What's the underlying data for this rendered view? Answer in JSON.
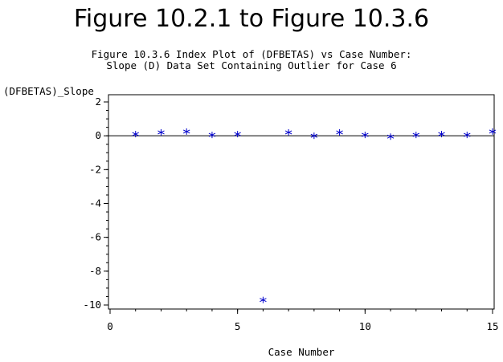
{
  "page": {
    "title": "Figure 10.2.1 to Figure 10.3.6"
  },
  "chart_data": {
    "type": "scatter",
    "title": "Figure 10.3.6 Index Plot of (DFBETAS) vs Case Number:",
    "subtitle": "Slope (D) Data Set Containing Outlier for Case 6",
    "xlabel": "Case Number",
    "ylabel": "(DFBETAS)_Slope",
    "xlim": [
      0,
      15
    ],
    "ylim": [
      -10,
      2
    ],
    "xticks": [
      0,
      5,
      10,
      15
    ],
    "yticks": [
      2,
      0,
      -2,
      -4,
      -6,
      -8,
      -10
    ],
    "marker": "*",
    "marker_color": "#0000cc",
    "reference_line_y": 0,
    "x": [
      1,
      2,
      3,
      4,
      5,
      6,
      7,
      8,
      9,
      10,
      11,
      12,
      13,
      14,
      15
    ],
    "y": [
      0.1,
      0.2,
      0.25,
      0.05,
      0.1,
      -9.7,
      0.2,
      0.0,
      0.2,
      0.05,
      -0.05,
      0.05,
      0.1,
      0.05,
      0.25
    ]
  }
}
